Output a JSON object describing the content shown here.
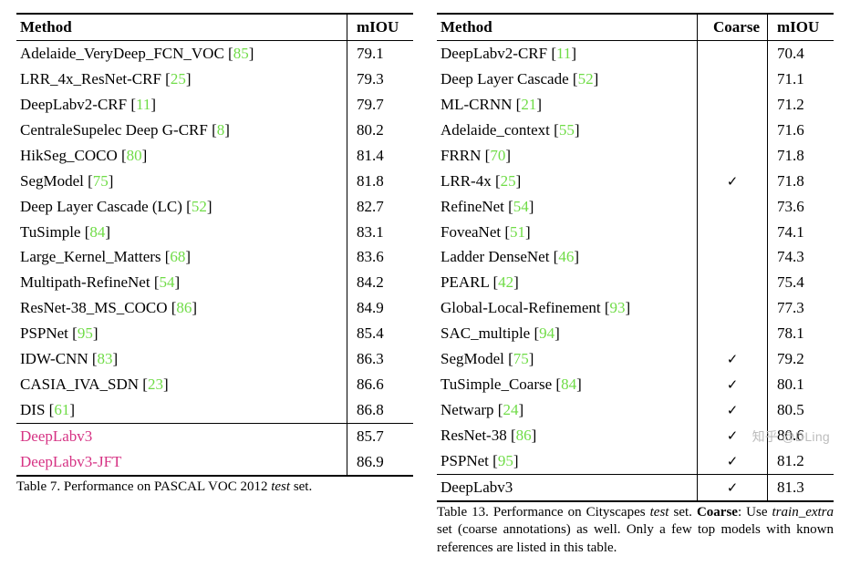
{
  "colors": {
    "cite": "#6fdc46",
    "highlight": "#d63384",
    "text": "#000000",
    "bg": "#ffffff",
    "rule": "#000000",
    "watermark": "#bdbdbd"
  },
  "typography": {
    "body_fontfamily": "Times New Roman",
    "body_fontsize_pt": 13,
    "caption_fontsize_pt": 11
  },
  "left_table": {
    "headers": {
      "method": "Method",
      "miou": "mIOU"
    },
    "rows": [
      {
        "method": "Adelaide_VeryDeep_FCN_VOC",
        "cite": "85",
        "miou": "79.1"
      },
      {
        "method": "LRR_4x_ResNet-CRF",
        "cite": "25",
        "miou": "79.3"
      },
      {
        "method": "DeepLabv2-CRF",
        "cite": "11",
        "miou": "79.7"
      },
      {
        "method": "CentraleSupelec Deep G-CRF",
        "cite": "8",
        "miou": "80.2"
      },
      {
        "method": "HikSeg_COCO",
        "cite": "80",
        "miou": "81.4"
      },
      {
        "method": "SegModel",
        "cite": "75",
        "miou": "81.8"
      },
      {
        "method": "Deep Layer Cascade (LC)",
        "cite": "52",
        "miou": "82.7"
      },
      {
        "method": "TuSimple",
        "cite": "84",
        "miou": "83.1"
      },
      {
        "method": "Large_Kernel_Matters",
        "cite": "68",
        "miou": "83.6"
      },
      {
        "method": "Multipath-RefineNet",
        "cite": "54",
        "miou": "84.2"
      },
      {
        "method": "ResNet-38_MS_COCO",
        "cite": "86",
        "miou": "84.9"
      },
      {
        "method": "PSPNet",
        "cite": "95",
        "miou": "85.4"
      },
      {
        "method": "IDW-CNN",
        "cite": "83",
        "miou": "86.3"
      },
      {
        "method": "CASIA_IVA_SDN",
        "cite": "23",
        "miou": "86.6"
      },
      {
        "method": "DIS",
        "cite": "61",
        "miou": "86.8"
      }
    ],
    "highlight_rows": [
      {
        "method": "DeepLabv3",
        "miou": "85.7"
      },
      {
        "method": "DeepLabv3-JFT",
        "miou": "86.9"
      }
    ],
    "caption": "Table 7. Performance on PASCAL VOC 2012 <i>test</i> set."
  },
  "right_table": {
    "headers": {
      "method": "Method",
      "coarse": "Coarse",
      "miou": "mIOU"
    },
    "rows": [
      {
        "method": "DeepLabv2-CRF",
        "cite": "11",
        "coarse": false,
        "miou": "70.4"
      },
      {
        "method": "Deep Layer Cascade",
        "cite": "52",
        "coarse": false,
        "miou": "71.1"
      },
      {
        "method": "ML-CRNN",
        "cite": "21",
        "coarse": false,
        "miou": "71.2"
      },
      {
        "method": "Adelaide_context",
        "cite": "55",
        "coarse": false,
        "miou": "71.6"
      },
      {
        "method": "FRRN",
        "cite": "70",
        "coarse": false,
        "miou": "71.8"
      },
      {
        "method": "LRR-4x",
        "cite": "25",
        "coarse": true,
        "miou": "71.8"
      },
      {
        "method": "RefineNet",
        "cite": "54",
        "coarse": false,
        "miou": "73.6"
      },
      {
        "method": "FoveaNet",
        "cite": "51",
        "coarse": false,
        "miou": "74.1"
      },
      {
        "method": "Ladder DenseNet",
        "cite": "46",
        "coarse": false,
        "miou": "74.3"
      },
      {
        "method": "PEARL",
        "cite": "42",
        "coarse": false,
        "miou": "75.4"
      },
      {
        "method": "Global-Local-Refinement",
        "cite": "93",
        "coarse": false,
        "miou": "77.3"
      },
      {
        "method": "SAC_multiple",
        "cite": "94",
        "coarse": false,
        "miou": "78.1"
      },
      {
        "method": "SegModel",
        "cite": "75",
        "coarse": true,
        "miou": "79.2"
      },
      {
        "method": "TuSimple_Coarse",
        "cite": "84",
        "coarse": true,
        "miou": "80.1"
      },
      {
        "method": "Netwarp",
        "cite": "24",
        "coarse": true,
        "miou": "80.5"
      },
      {
        "method": "ResNet-38",
        "cite": "86",
        "coarse": true,
        "miou": "80.6"
      },
      {
        "method": "PSPNet",
        "cite": "95",
        "coarse": true,
        "miou": "81.2"
      }
    ],
    "highlight_rows": [
      {
        "method": "DeepLabv3",
        "coarse": true,
        "miou": "81.3"
      }
    ],
    "caption": "Table 13. Performance on Cityscapes <i>test</i> set. <b>Coarse</b>: Use <i>train_extra</i> set (coarse annotations) as well. Only a few top models with known references are listed in this table."
  },
  "watermark": "知乎 @DLing"
}
